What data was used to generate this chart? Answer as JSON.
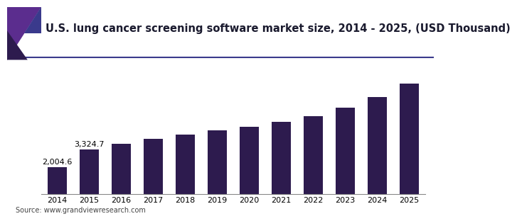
{
  "title": "U.S. lung cancer screening software market size, 2014 - 2025, (USD Thousand)",
  "years": [
    2014,
    2015,
    2016,
    2017,
    2018,
    2019,
    2020,
    2021,
    2022,
    2023,
    2024,
    2025
  ],
  "values": [
    2004.6,
    3324.7,
    3700,
    4100,
    4400,
    4750,
    5000,
    5350,
    5800,
    6400,
    7200,
    8200
  ],
  "bar_color": "#2d1b4e",
  "bar_labels": [
    "2,004.6",
    "3,324.7",
    "",
    "",
    "",
    "",
    "",
    "",
    "",
    "",
    "",
    ""
  ],
  "source_text": "Source: www.grandviewresearch.com",
  "background_color": "#ffffff",
  "title_fontsize": 10.5,
  "label_fontsize": 8,
  "tick_fontsize": 8,
  "source_fontsize": 7,
  "ylim": [
    0,
    9500
  ],
  "accent_purple": "#5b2d8e",
  "accent_dark": "#2d1b4e",
  "accent_blue": "#3a3a8c",
  "header_line_color": "#5b2d8e"
}
